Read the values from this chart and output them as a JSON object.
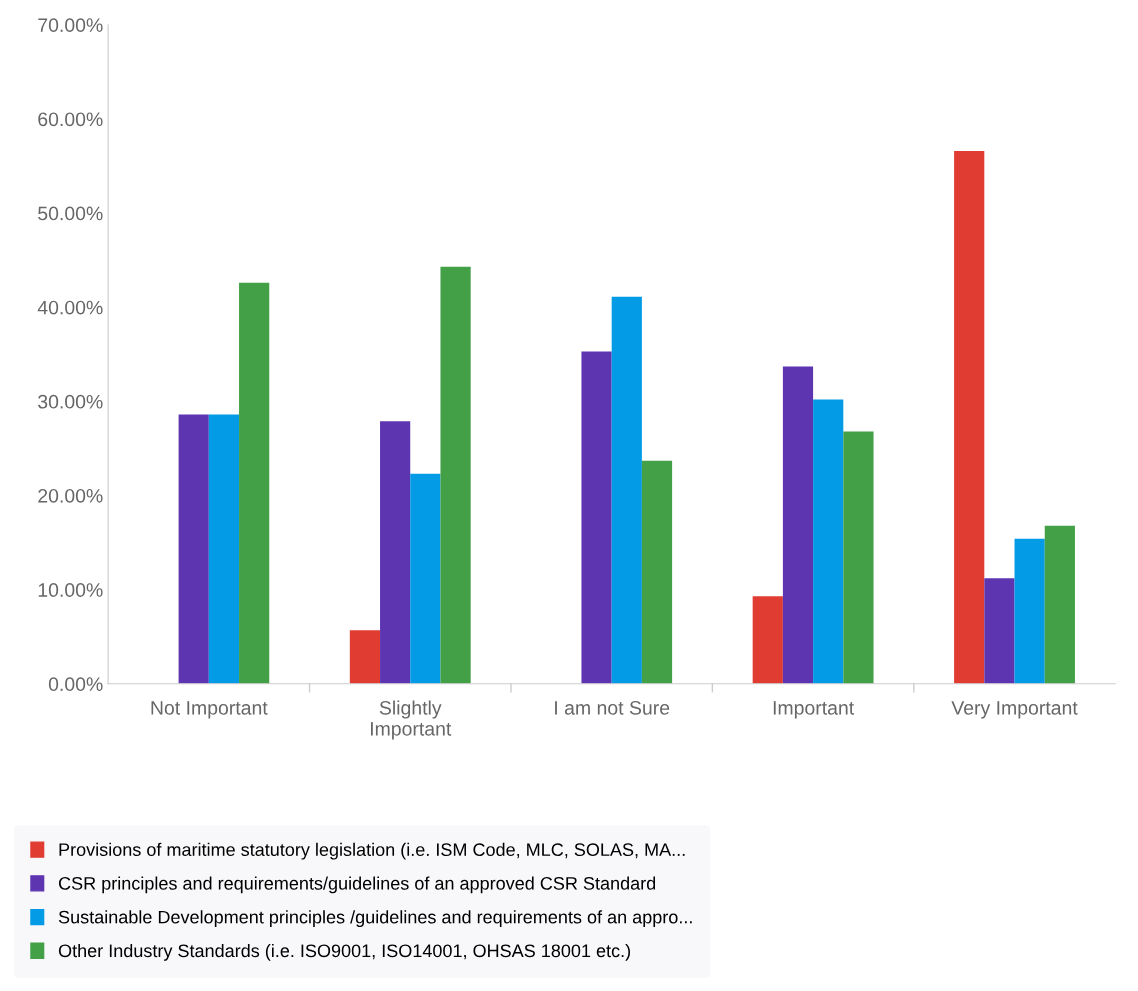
{
  "chart_data": {
    "type": "bar",
    "categories": [
      "Not Important",
      "Slightly\nImportant",
      "I am not Sure",
      "Important",
      "Very Important"
    ],
    "series": [
      {
        "name": "Provisions of maritime statutory legislation (i.e. ISM Code, MLC, SOLAS, MA...",
        "color": "#e03c31",
        "values": [
          0,
          5.7,
          0,
          9.3,
          56.6
        ]
      },
      {
        "name": "CSR principles and requirements/guidelines of an approved CSR Standard",
        "color": "#5e35b1",
        "values": [
          28.6,
          27.9,
          35.3,
          33.7,
          11.2
        ]
      },
      {
        "name": "Sustainable Development principles /guidelines and requirements of an appro...",
        "color": "#039be5",
        "values": [
          28.6,
          22.3,
          41.1,
          30.2,
          15.4
        ]
      },
      {
        "name": "Other Industry Standards (i.e. ISO9001, ISO14001, OHSAS 18001 etc.)",
        "color": "#43a047",
        "values": [
          42.6,
          44.3,
          23.7,
          26.8,
          16.8
        ]
      }
    ],
    "ylim": [
      0,
      70
    ],
    "yticks": [
      {
        "value": 0,
        "label": "0.00%"
      },
      {
        "value": 10,
        "label": "10.00%"
      },
      {
        "value": 20,
        "label": "20.00%"
      },
      {
        "value": 30,
        "label": "30.00%"
      },
      {
        "value": 40,
        "label": "40.00%"
      },
      {
        "value": 50,
        "label": "50.00%"
      },
      {
        "value": 60,
        "label": "60.00%"
      },
      {
        "value": 70,
        "label": "70.00%"
      }
    ],
    "grid": false,
    "legend": "bottom"
  }
}
